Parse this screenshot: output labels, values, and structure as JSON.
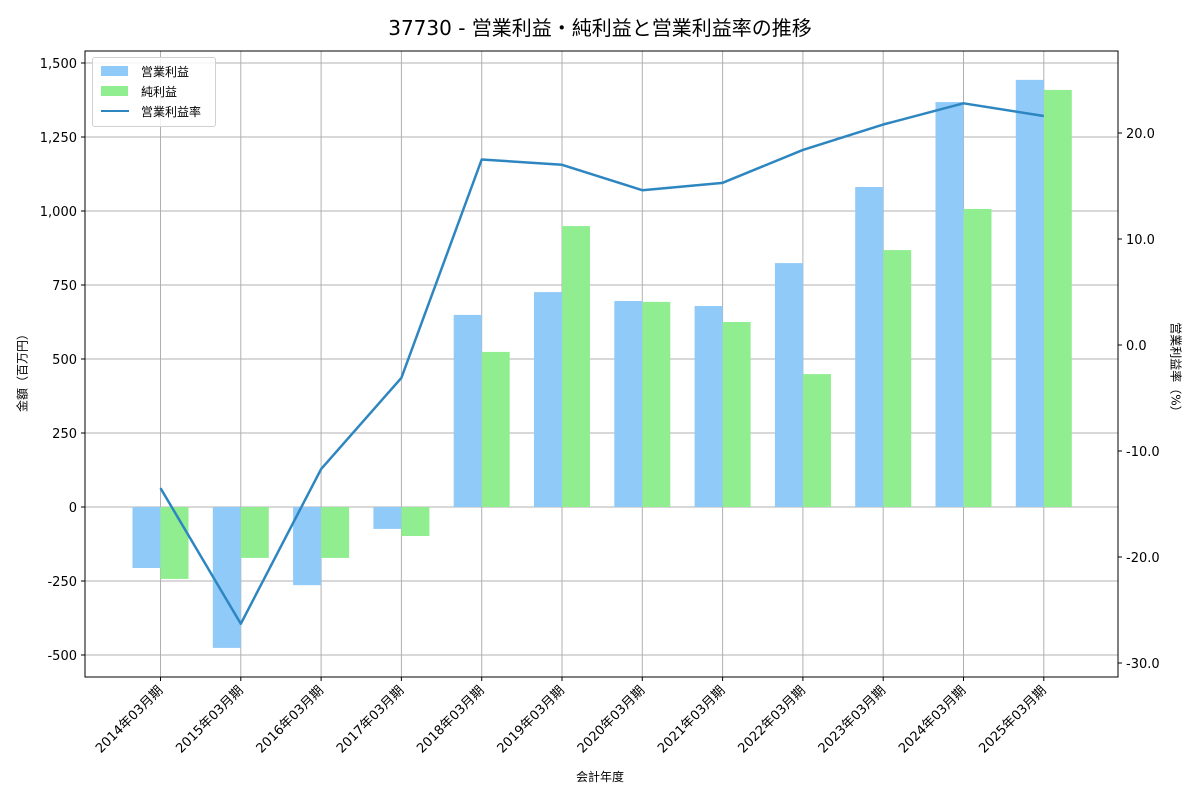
{
  "title": "37730 - 営業利益・純利益と営業利益率の推移",
  "colors": {
    "operating_profit": "#90CAF9",
    "net_profit": "#90EE90",
    "operating_margin": "#2E86C1",
    "grid": "#b0b0b0"
  },
  "legend": {
    "items": [
      {
        "label": "営業利益",
        "type": "bar"
      },
      {
        "label": "純利益",
        "type": "bar"
      },
      {
        "label": "営業利益率",
        "type": "line"
      }
    ]
  },
  "axes": {
    "left_label": "金額（百万円）",
    "right_label": "営業利益率（%）",
    "x_label": "会計年度",
    "left_ticks": [
      "1,500",
      "1,250",
      "1,000",
      "750",
      "500",
      "250",
      "0",
      "-250",
      "-500"
    ],
    "right_ticks": [
      "20.0",
      "10.0",
      "0.0",
      "-10.0",
      "-20.0",
      "-30.0"
    ]
  },
  "chart_data": {
    "type": "bar",
    "title": "37730 - 営業利益・純利益と営業利益率の推移",
    "xlabel": "会計年度",
    "ylabel": "金額（百万円）",
    "y2label": "営業利益率（%）",
    "categories": [
      "2014年03月期",
      "2015年03月期",
      "2016年03月期",
      "2017年03月期",
      "2018年03月期",
      "2019年03月期",
      "2020年03月期",
      "2021年03月期",
      "2022年03月期",
      "2023年03月期",
      "2024年03月期",
      "2025年03月期"
    ],
    "series": [
      {
        "name": "営業利益",
        "type": "bar",
        "axis": "left",
        "values": [
          -206,
          -476,
          -264,
          -74,
          649,
          726,
          696,
          679,
          824,
          1081,
          1368,
          1443
        ]
      },
      {
        "name": "純利益",
        "type": "bar",
        "axis": "left",
        "values": [
          -243,
          -172,
          -172,
          -98,
          524,
          949,
          693,
          625,
          449,
          868,
          1007,
          1409
        ]
      },
      {
        "name": "営業利益率",
        "type": "line",
        "axis": "right",
        "values": [
          -13.5,
          -26.3,
          -11.7,
          -3.1,
          17.5,
          17.0,
          14.6,
          15.3,
          18.4,
          20.8,
          22.8,
          21.6
        ]
      }
    ],
    "ylim": [
      -575,
      1540
    ],
    "y2lim": [
      -31,
      28
    ],
    "yticks": [
      -500,
      -250,
      0,
      250,
      500,
      750,
      1000,
      1250,
      1500
    ],
    "y2ticks": [
      -30,
      -20,
      -10,
      0,
      10,
      20
    ],
    "grid": true,
    "legend_position": "upper left"
  }
}
